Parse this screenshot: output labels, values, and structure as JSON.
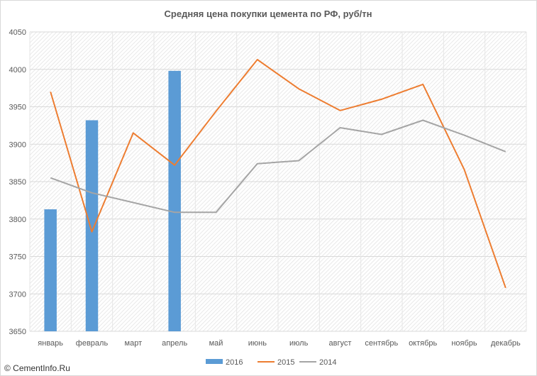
{
  "chart_data": {
    "type": "bar",
    "title": "Средняя цена  покупки цемента по РФ, руб/тн",
    "categories": [
      "январь",
      "февраль",
      "март",
      "апрель",
      "май",
      "июнь",
      "июль",
      "август",
      "сентябрь",
      "октябрь",
      "ноябрь",
      "декабрь"
    ],
    "series": [
      {
        "name": "2016",
        "type": "bar",
        "values": [
          3813,
          3932,
          null,
          3998,
          null,
          null,
          null,
          null,
          null,
          null,
          null,
          null
        ]
      },
      {
        "name": "2015",
        "type": "line",
        "values": [
          3970,
          3783,
          3915,
          3872,
          3944,
          4013,
          3974,
          3945,
          3960,
          3980,
          3866,
          3708
        ]
      },
      {
        "name": "2014",
        "type": "line",
        "values": [
          3855,
          3835,
          3822,
          3809,
          3809,
          3874,
          3878,
          3922,
          3913,
          3932,
          3912,
          3890
        ]
      }
    ],
    "yticks": [
      3650,
      3700,
      3750,
      3800,
      3850,
      3900,
      3950,
      4000,
      4050
    ],
    "ylim": [
      3650,
      4050
    ],
    "grid": true,
    "legend_position": "bottom",
    "colors": {
      "2016": "#5B9BD5",
      "2015": "#ED7D31",
      "2014": "#A5A5A5"
    }
  },
  "watermark": "© CementInfo.Ru"
}
